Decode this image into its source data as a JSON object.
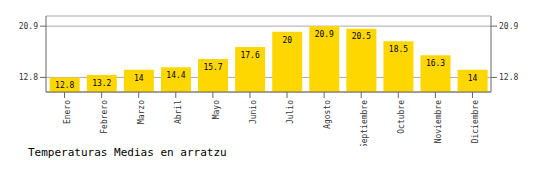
{
  "chart_data": {
    "type": "bar",
    "title": "Temperaturas Medias en arratzu",
    "categories": [
      "Enero",
      "Febrero",
      "Marzo",
      "Abril",
      "Mayo",
      "Junio",
      "Julio",
      "Agosto",
      "Septiembre",
      "Octubre",
      "Noviembre",
      "Diciembre"
    ],
    "values": [
      12.8,
      13.2,
      14.0,
      14.4,
      15.7,
      17.6,
      20.0,
      20.9,
      20.5,
      18.5,
      16.3,
      14.0
    ],
    "color": "#FFD700",
    "ylim": [
      10.5,
      22.5
    ],
    "yticks": [
      12.8,
      20.9
    ],
    "y2lim": [
      10.5,
      22.5
    ],
    "y2ticks": [
      12.8,
      20.9
    ],
    "grid": true,
    "data_labels": true
  }
}
